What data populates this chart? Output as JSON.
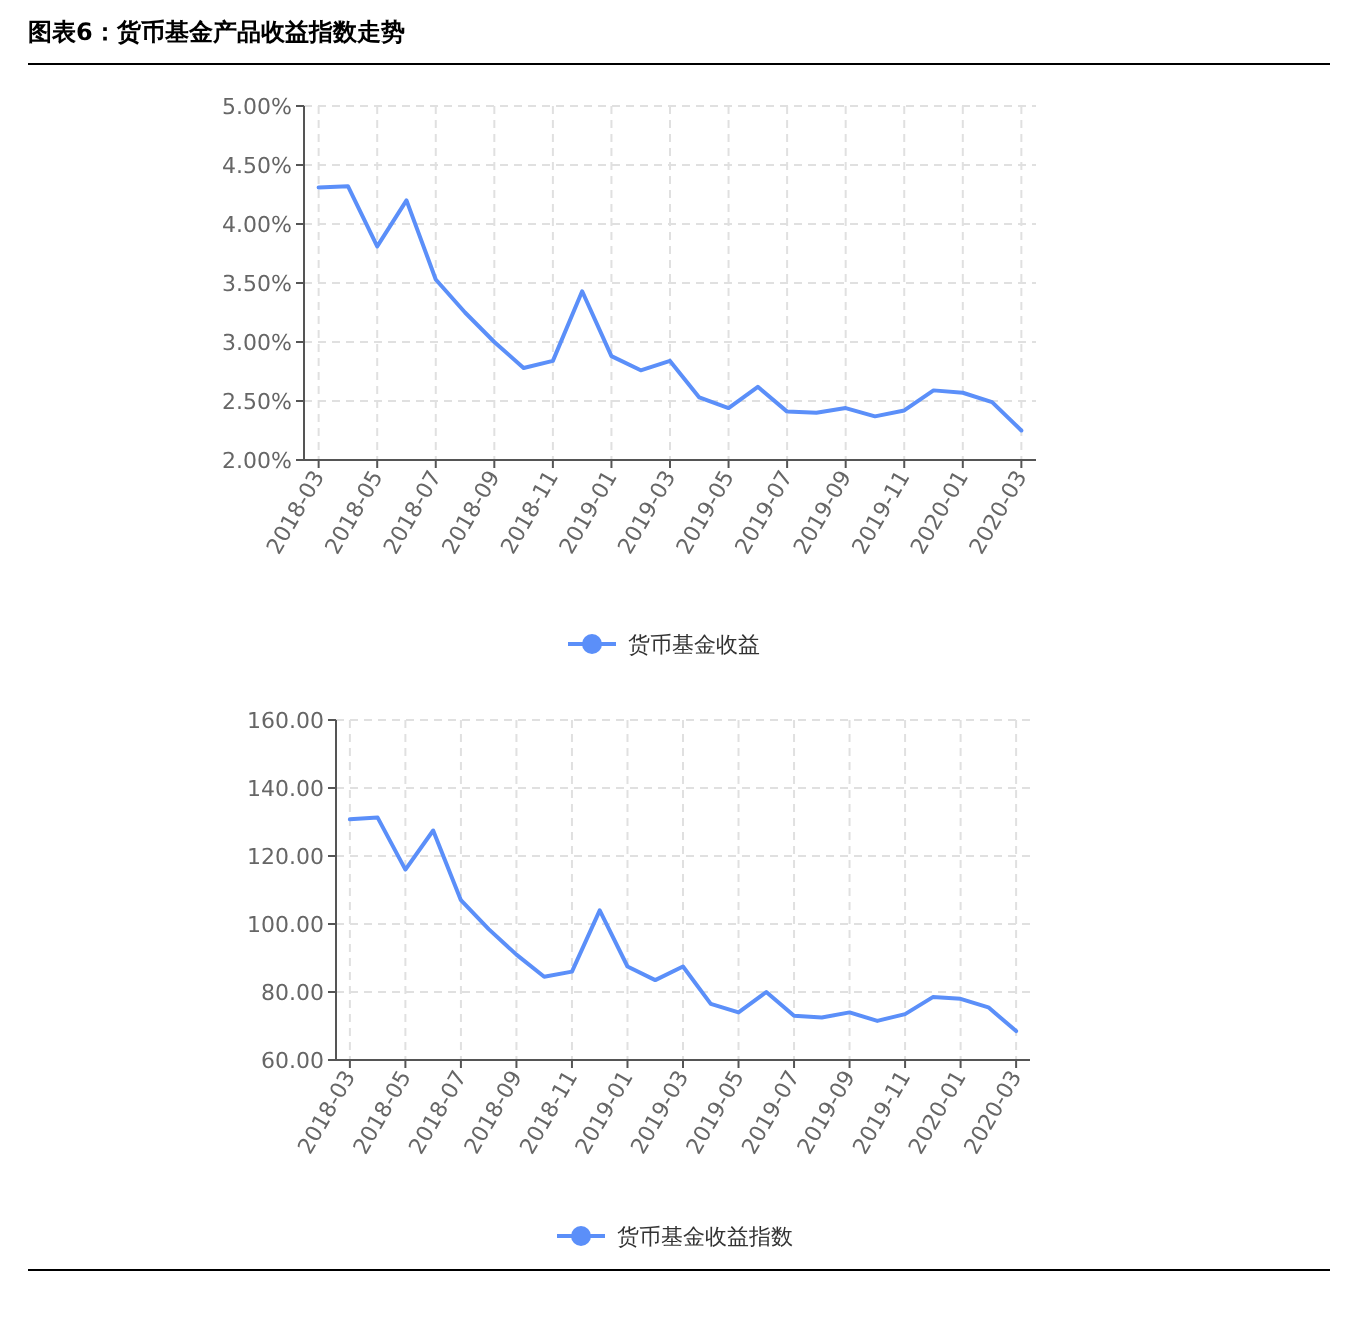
{
  "chart_data": [
    {
      "type": "line",
      "title": "图表6：货币基金产品收益指数走势",
      "categories": [
        "2018-03",
        null,
        "2018-05",
        null,
        "2018-07",
        null,
        "2018-09",
        null,
        "2018-11",
        null,
        "2019-01",
        null,
        "2019-03",
        null,
        "2019-05",
        null,
        "2019-07",
        null,
        "2019-09",
        null,
        "2019-11",
        null,
        "2020-01",
        null,
        "2020-03"
      ],
      "series": [
        {
          "name": "货币基金收益",
          "color": "#5b8ff9",
          "values": [
            4.31,
            4.32,
            3.81,
            4.2,
            3.53,
            3.25,
            3.0,
            2.78,
            2.84,
            3.43,
            2.88,
            2.76,
            2.84,
            2.53,
            2.44,
            2.62,
            2.41,
            2.4,
            2.44,
            2.37,
            2.42,
            2.59,
            2.57,
            2.49,
            2.25
          ]
        }
      ],
      "ylim": [
        2,
        5
      ],
      "yticks": [
        {
          "value": 2,
          "label": "2.00%"
        },
        {
          "value": 2.5,
          "label": "2.50%"
        },
        {
          "value": 3,
          "label": "3.00%"
        },
        {
          "value": 3.5,
          "label": "3.50%"
        },
        {
          "value": 4,
          "label": "4.00%"
        },
        {
          "value": 4.5,
          "label": "4.50%"
        },
        {
          "value": 5,
          "label": "5.00%"
        }
      ],
      "grid": true,
      "legend": "bottom",
      "marker": "none",
      "line_style": "solid"
    },
    {
      "type": "line",
      "categories": [
        "2018-03",
        null,
        "2018-05",
        null,
        "2018-07",
        null,
        "2018-09",
        null,
        "2018-11",
        null,
        "2019-01",
        null,
        "2019-03",
        null,
        "2019-05",
        null,
        "2019-07",
        null,
        "2019-09",
        null,
        "2019-11",
        null,
        "2020-01",
        null,
        "2020-03"
      ],
      "series": [
        {
          "name": "货币基金收益指数",
          "color": "#5b8ff9",
          "values": [
            130.8,
            131.3,
            116,
            127.5,
            107,
            98.5,
            91,
            84.5,
            86,
            104,
            87.5,
            83.5,
            87.5,
            76.5,
            74,
            80,
            73,
            72.5,
            74,
            71.5,
            73.5,
            78.5,
            78,
            75.5,
            68.5
          ]
        }
      ],
      "ylim": [
        60,
        160
      ],
      "yticks": [
        {
          "value": 60,
          "label": "60.00"
        },
        {
          "value": 80,
          "label": "80.00"
        },
        {
          "value": 100,
          "label": "100.00"
        },
        {
          "value": 120,
          "label": "120.00"
        },
        {
          "value": 140,
          "label": "140.00"
        },
        {
          "value": 160,
          "label": "160.00"
        }
      ],
      "grid": true,
      "legend": "bottom",
      "marker": "none",
      "line_style": "solid"
    }
  ]
}
